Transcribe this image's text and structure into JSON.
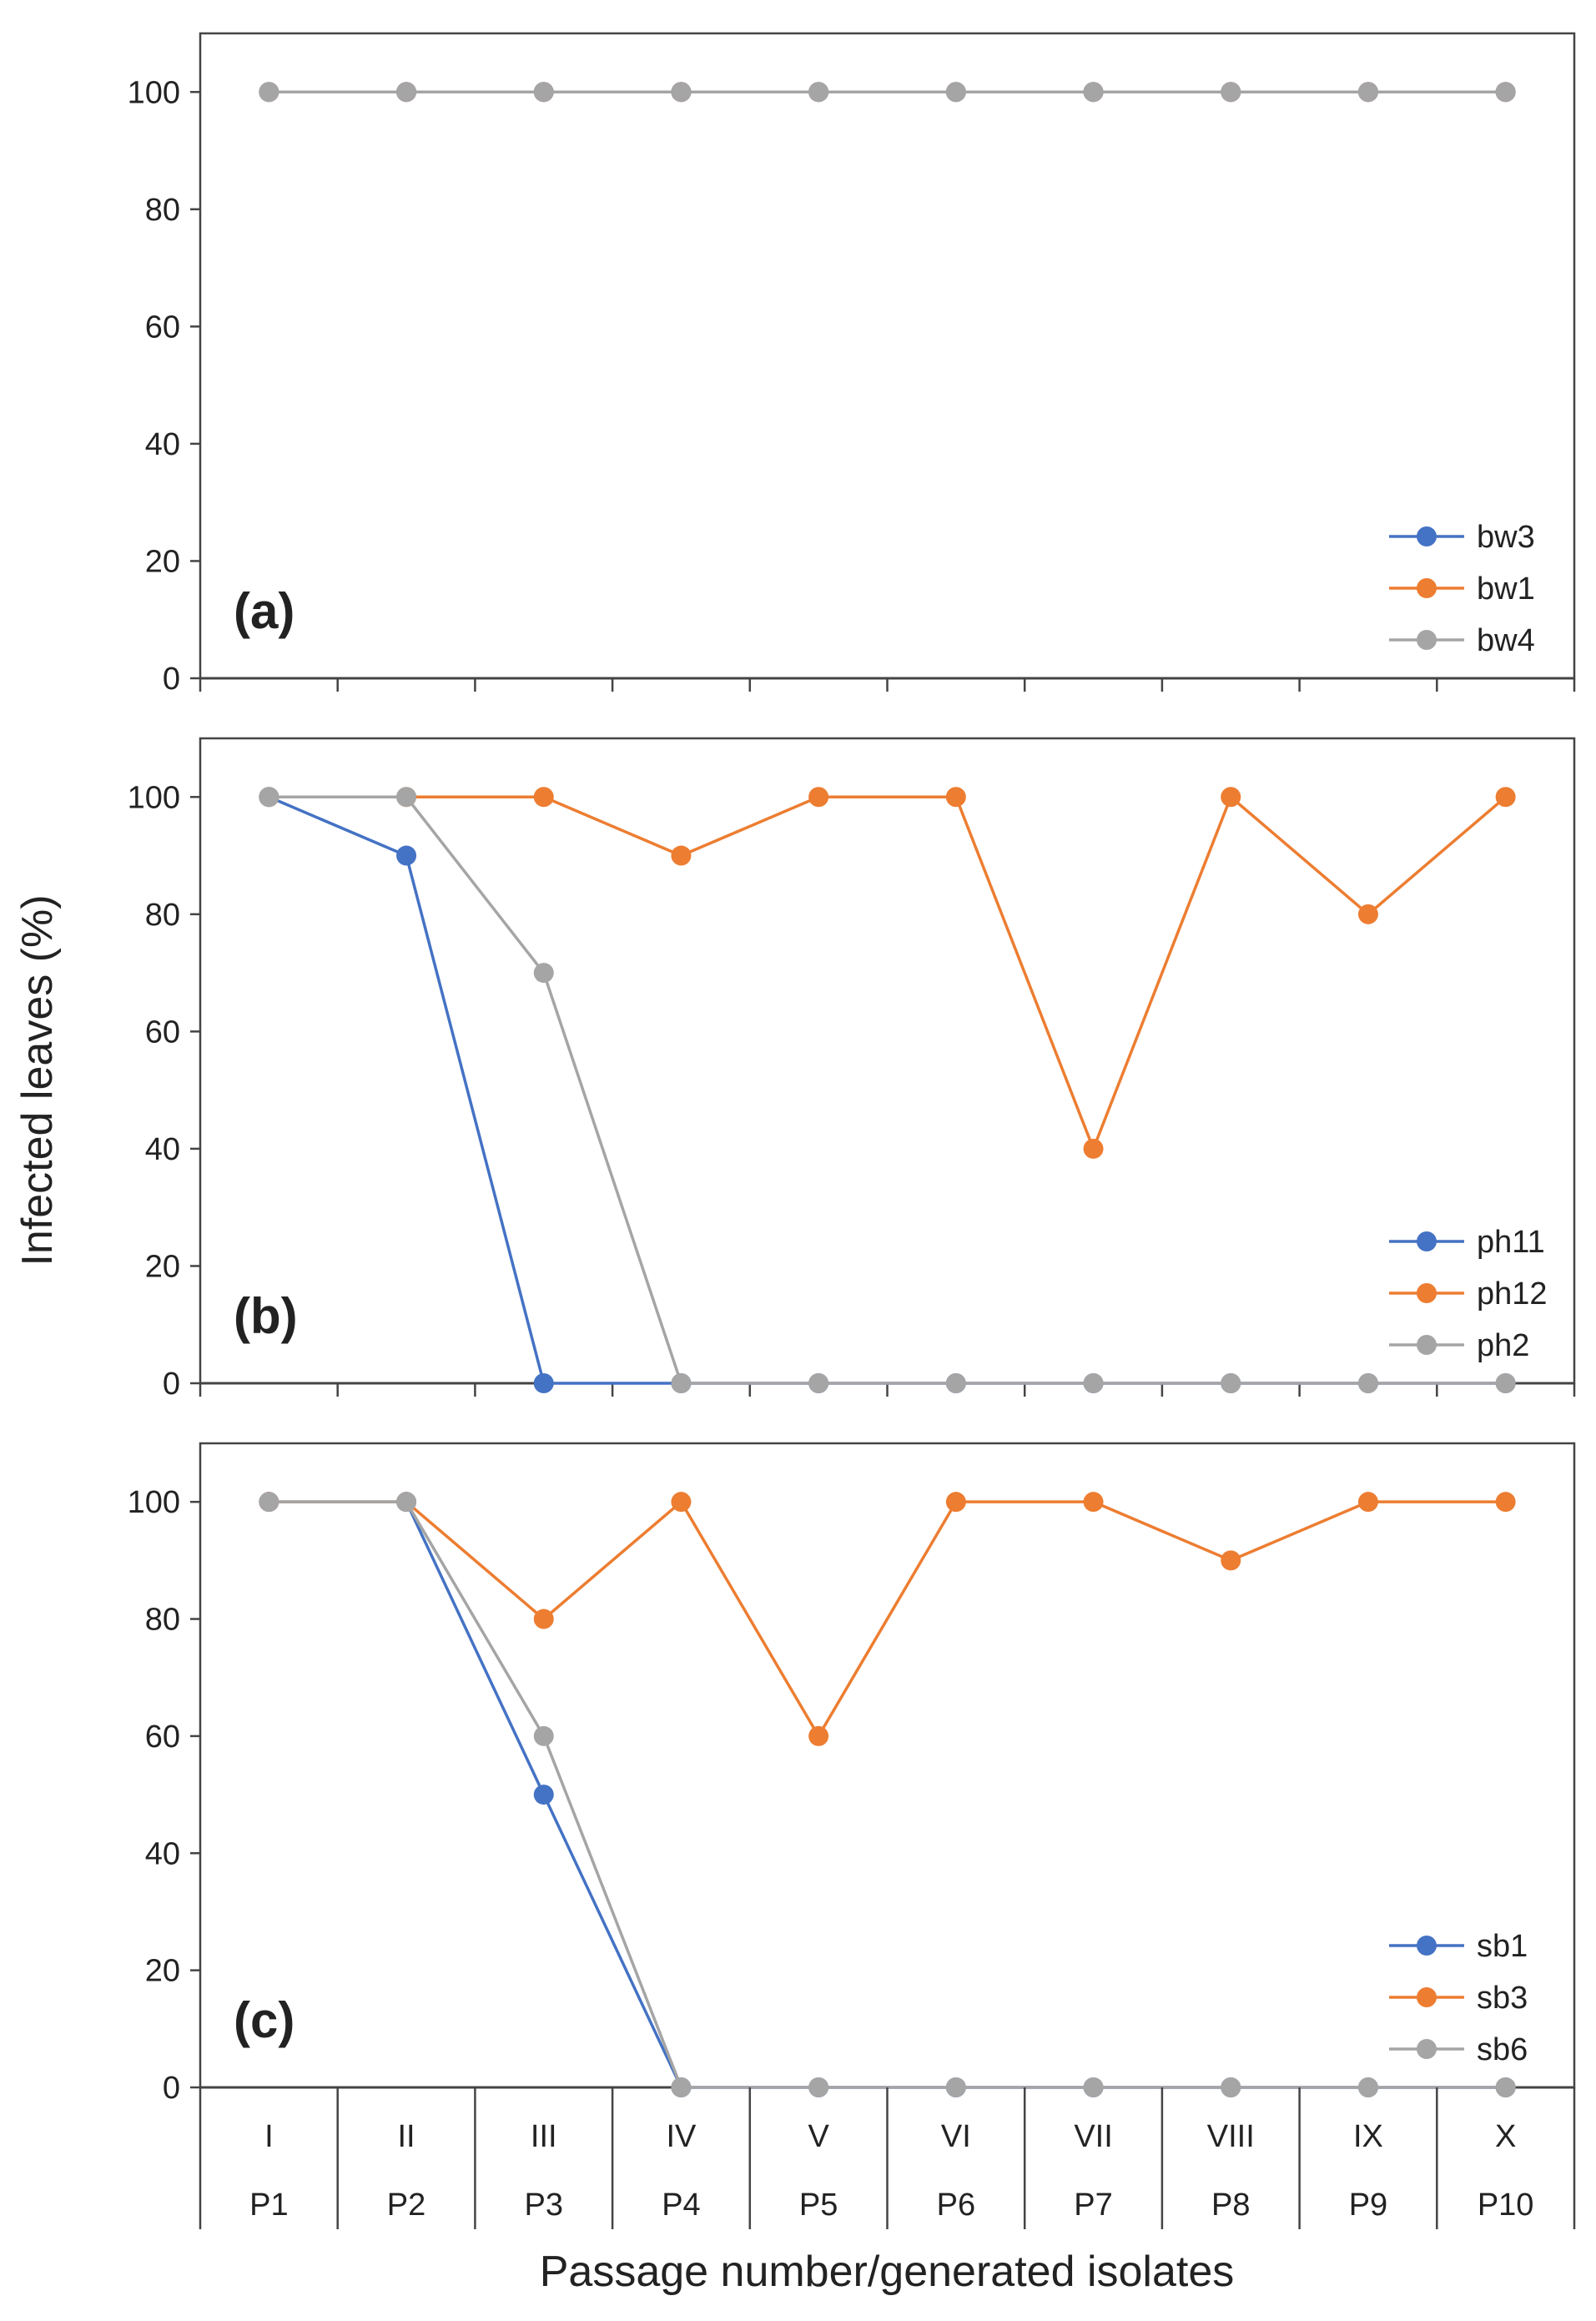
{
  "figure": {
    "ylabel": "Infected leaves (%)",
    "xlabel": "Passage number/generated isolates"
  },
  "colors": {
    "blue": "#4472C4",
    "orange": "#ED7D31",
    "gray": "#A5A5A5"
  },
  "chart_data": [
    {
      "type": "line",
      "panel": "(a)",
      "ylim": [
        0,
        110
      ],
      "yticks": [
        0,
        20,
        40,
        60,
        80,
        100
      ],
      "ytick_labels": [
        "0",
        "20",
        "40",
        "60",
        "80",
        "100"
      ],
      "categories": [
        "P1",
        "P2",
        "P3",
        "P4",
        "P5",
        "P6",
        "P7",
        "P8",
        "P9",
        "P10"
      ],
      "legend": "bottom-right",
      "series": [
        {
          "name": "bw3",
          "color": "#4472C4",
          "values": [
            100,
            100,
            100,
            100,
            100,
            100,
            100,
            100,
            100,
            100
          ]
        },
        {
          "name": "bw1",
          "color": "#ED7D31",
          "values": [
            100,
            100,
            100,
            100,
            100,
            100,
            100,
            100,
            100,
            100
          ]
        },
        {
          "name": "bw4",
          "color": "#A5A5A5",
          "values": [
            100,
            100,
            100,
            100,
            100,
            100,
            100,
            100,
            100,
            100
          ]
        }
      ]
    },
    {
      "type": "line",
      "panel": "(b)",
      "ylim": [
        0,
        110
      ],
      "yticks": [
        0,
        20,
        40,
        60,
        80,
        100
      ],
      "ytick_labels": [
        "0",
        "20",
        "40",
        "60",
        "80",
        "100"
      ],
      "categories": [
        "P1",
        "P2",
        "P3",
        "P4",
        "P5",
        "P6",
        "P7",
        "P8",
        "P9",
        "P10"
      ],
      "legend": "bottom-right",
      "series": [
        {
          "name": "ph11",
          "color": "#4472C4",
          "values": [
            100,
            90,
            0,
            0,
            0,
            0,
            0,
            0,
            0,
            0
          ]
        },
        {
          "name": "ph12",
          "color": "#ED7D31",
          "values": [
            100,
            100,
            100,
            90,
            100,
            100,
            40,
            100,
            80,
            100
          ]
        },
        {
          "name": "ph2",
          "color": "#A5A5A5",
          "values": [
            100,
            100,
            70,
            0,
            0,
            0,
            0,
            0,
            0,
            0
          ]
        }
      ]
    },
    {
      "type": "line",
      "panel": "(c)",
      "ylim": [
        0,
        110
      ],
      "yticks": [
        0,
        20,
        40,
        60,
        80,
        100
      ],
      "ytick_labels": [
        "0",
        "20",
        "40",
        "60",
        "80",
        "100"
      ],
      "categories": [
        "P1",
        "P2",
        "P3",
        "P4",
        "P5",
        "P6",
        "P7",
        "P8",
        "P9",
        "P10"
      ],
      "roman_labels": [
        "I",
        "II",
        "III",
        "IV",
        "V",
        "VI",
        "VII",
        "VIII",
        "IX",
        "X"
      ],
      "legend": "bottom-right",
      "series": [
        {
          "name": "sb1",
          "color": "#4472C4",
          "values": [
            100,
            100,
            50,
            0,
            0,
            0,
            0,
            0,
            0,
            0
          ]
        },
        {
          "name": "sb3",
          "color": "#ED7D31",
          "values": [
            100,
            100,
            80,
            100,
            60,
            100,
            100,
            90,
            100,
            100
          ]
        },
        {
          "name": "sb6",
          "color": "#A5A5A5",
          "values": [
            100,
            100,
            60,
            0,
            0,
            0,
            0,
            0,
            0,
            0
          ]
        }
      ]
    }
  ]
}
